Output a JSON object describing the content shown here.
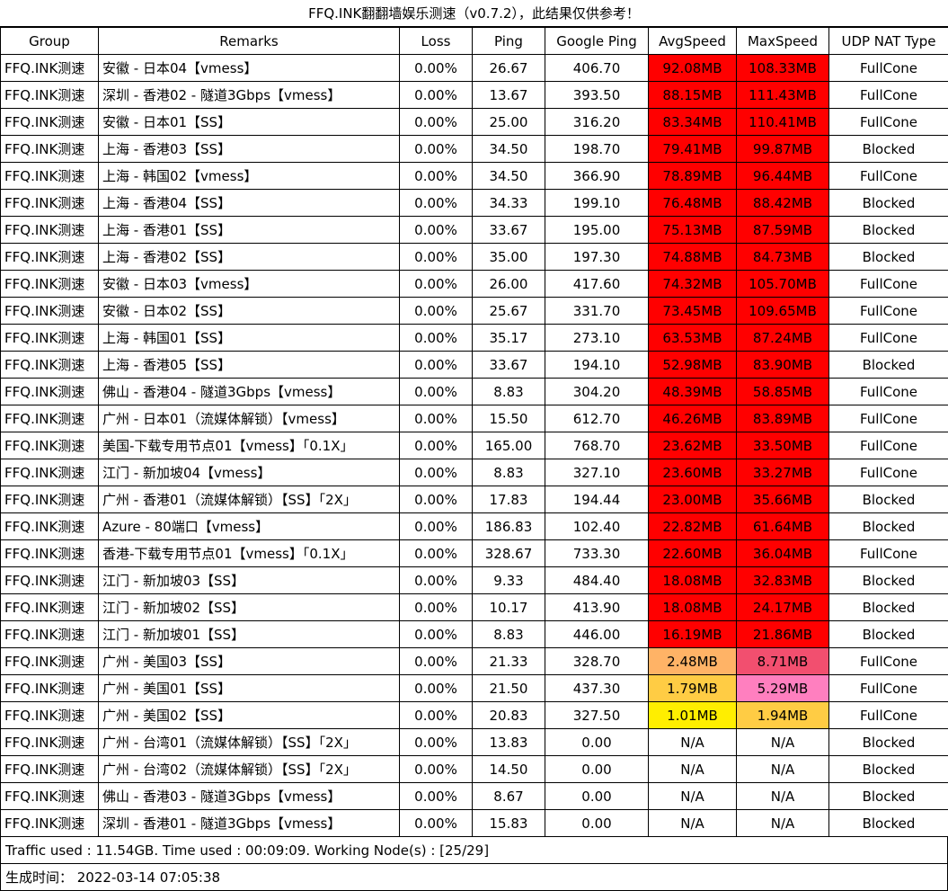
{
  "title": "FFQ.INK翻翻墙娱乐测速（v0.7.2），此结果仅供参考！",
  "headers": [
    "Group",
    "Remarks",
    "Loss",
    "Ping",
    "Google Ping",
    "AvgSpeed",
    "MaxSpeed",
    "UDP NAT Type"
  ],
  "colors": {
    "red": "#ff0000",
    "orange_light": "#ffb366",
    "pink": "#f24f6f",
    "yellow_orange": "#ffcc44",
    "pink_light": "#ff7fbf",
    "yellow": "#ffee00",
    "na": "#ffffff"
  },
  "rows": [
    {
      "group": "FFQ.INK测速",
      "remarks": "安徽 - 日本04【vmess】",
      "loss": "0.00%",
      "ping": "26.67",
      "gping": "406.70",
      "avg": "92.08MB",
      "max": "108.33MB",
      "nat": "FullCone",
      "avg_color": "#ff0000",
      "max_color": "#ff0000"
    },
    {
      "group": "FFQ.INK测速",
      "remarks": "深圳 - 香港02 - 隧道3Gbps【vmess】",
      "loss": "0.00%",
      "ping": "13.67",
      "gping": "393.50",
      "avg": "88.15MB",
      "max": "111.43MB",
      "nat": "FullCone",
      "avg_color": "#ff0000",
      "max_color": "#ff0000"
    },
    {
      "group": "FFQ.INK测速",
      "remarks": "安徽 - 日本01【SS】",
      "loss": "0.00%",
      "ping": "25.00",
      "gping": "316.20",
      "avg": "83.34MB",
      "max": "110.41MB",
      "nat": "FullCone",
      "avg_color": "#ff0000",
      "max_color": "#ff0000"
    },
    {
      "group": "FFQ.INK测速",
      "remarks": "上海 - 香港03【SS】",
      "loss": "0.00%",
      "ping": "34.50",
      "gping": "198.70",
      "avg": "79.41MB",
      "max": "99.87MB",
      "nat": "Blocked",
      "avg_color": "#ff0000",
      "max_color": "#ff0000"
    },
    {
      "group": "FFQ.INK测速",
      "remarks": "上海 - 韩国02【vmess】",
      "loss": "0.00%",
      "ping": "34.50",
      "gping": "366.90",
      "avg": "78.89MB",
      "max": "96.44MB",
      "nat": "FullCone",
      "avg_color": "#ff0000",
      "max_color": "#ff0000"
    },
    {
      "group": "FFQ.INK测速",
      "remarks": "上海 - 香港04【SS】",
      "loss": "0.00%",
      "ping": "34.33",
      "gping": "199.10",
      "avg": "76.48MB",
      "max": "88.42MB",
      "nat": "Blocked",
      "avg_color": "#ff0000",
      "max_color": "#ff0000"
    },
    {
      "group": "FFQ.INK测速",
      "remarks": "上海 - 香港01【SS】",
      "loss": "0.00%",
      "ping": "33.67",
      "gping": "195.00",
      "avg": "75.13MB",
      "max": "87.59MB",
      "nat": "Blocked",
      "avg_color": "#ff0000",
      "max_color": "#ff0000"
    },
    {
      "group": "FFQ.INK测速",
      "remarks": "上海 - 香港02【SS】",
      "loss": "0.00%",
      "ping": "35.00",
      "gping": "197.30",
      "avg": "74.88MB",
      "max": "84.73MB",
      "nat": "Blocked",
      "avg_color": "#ff0000",
      "max_color": "#ff0000"
    },
    {
      "group": "FFQ.INK测速",
      "remarks": "安徽 - 日本03【vmess】",
      "loss": "0.00%",
      "ping": "26.00",
      "gping": "417.60",
      "avg": "74.32MB",
      "max": "105.70MB",
      "nat": "FullCone",
      "avg_color": "#ff0000",
      "max_color": "#ff0000"
    },
    {
      "group": "FFQ.INK测速",
      "remarks": "安徽 - 日本02【SS】",
      "loss": "0.00%",
      "ping": "25.67",
      "gping": "331.70",
      "avg": "73.45MB",
      "max": "109.65MB",
      "nat": "FullCone",
      "avg_color": "#ff0000",
      "max_color": "#ff0000"
    },
    {
      "group": "FFQ.INK测速",
      "remarks": "上海 - 韩国01【SS】",
      "loss": "0.00%",
      "ping": "35.17",
      "gping": "273.10",
      "avg": "63.53MB",
      "max": "87.24MB",
      "nat": "FullCone",
      "avg_color": "#ff0000",
      "max_color": "#ff0000"
    },
    {
      "group": "FFQ.INK测速",
      "remarks": "上海 - 香港05【SS】",
      "loss": "0.00%",
      "ping": "33.67",
      "gping": "194.10",
      "avg": "52.98MB",
      "max": "83.90MB",
      "nat": "Blocked",
      "avg_color": "#ff0000",
      "max_color": "#ff0000"
    },
    {
      "group": "FFQ.INK测速",
      "remarks": "佛山 - 香港04 - 隧道3Gbps【vmess】",
      "loss": "0.00%",
      "ping": "8.83",
      "gping": "304.20",
      "avg": "48.39MB",
      "max": "58.85MB",
      "nat": "FullCone",
      "avg_color": "#ff0000",
      "max_color": "#ff0000"
    },
    {
      "group": "FFQ.INK测速",
      "remarks": "广州 - 日本01（流媒体解锁）【vmess】",
      "loss": "0.00%",
      "ping": "15.50",
      "gping": "612.70",
      "avg": "46.26MB",
      "max": "83.89MB",
      "nat": "FullCone",
      "avg_color": "#ff0000",
      "max_color": "#ff0000"
    },
    {
      "group": "FFQ.INK测速",
      "remarks": "美国-下载专用节点01【vmess】「0.1X」",
      "loss": "0.00%",
      "ping": "165.00",
      "gping": "768.70",
      "avg": "23.62MB",
      "max": "33.50MB",
      "nat": "FullCone",
      "avg_color": "#ff0000",
      "max_color": "#ff0000"
    },
    {
      "group": "FFQ.INK测速",
      "remarks": "江门 - 新加坡04【vmess】",
      "loss": "0.00%",
      "ping": "8.83",
      "gping": "327.10",
      "avg": "23.60MB",
      "max": "33.27MB",
      "nat": "FullCone",
      "avg_color": "#ff0000",
      "max_color": "#ff0000"
    },
    {
      "group": "FFQ.INK测速",
      "remarks": "广州 - 香港01（流媒体解锁）【SS】「2X」",
      "loss": "0.00%",
      "ping": "17.83",
      "gping": "194.44",
      "avg": "23.00MB",
      "max": "35.66MB",
      "nat": "Blocked",
      "avg_color": "#ff0000",
      "max_color": "#ff0000"
    },
    {
      "group": "FFQ.INK测速",
      "remarks": "Azure - 80端口【vmess】",
      "loss": "0.00%",
      "ping": "186.83",
      "gping": "102.40",
      "avg": "22.82MB",
      "max": "61.64MB",
      "nat": "Blocked",
      "avg_color": "#ff0000",
      "max_color": "#ff0000"
    },
    {
      "group": "FFQ.INK测速",
      "remarks": "香港-下载专用节点01【vmess】「0.1X」",
      "loss": "0.00%",
      "ping": "328.67",
      "gping": "733.30",
      "avg": "22.60MB",
      "max": "36.04MB",
      "nat": "FullCone",
      "avg_color": "#ff0000",
      "max_color": "#ff0000"
    },
    {
      "group": "FFQ.INK测速",
      "remarks": "江门 - 新加坡03【SS】",
      "loss": "0.00%",
      "ping": "9.33",
      "gping": "484.40",
      "avg": "18.08MB",
      "max": "32.83MB",
      "nat": "Blocked",
      "avg_color": "#ff0000",
      "max_color": "#ff0000"
    },
    {
      "group": "FFQ.INK测速",
      "remarks": "江门 - 新加坡02【SS】",
      "loss": "0.00%",
      "ping": "10.17",
      "gping": "413.90",
      "avg": "18.08MB",
      "max": "24.17MB",
      "nat": "Blocked",
      "avg_color": "#ff0000",
      "max_color": "#ff0000"
    },
    {
      "group": "FFQ.INK测速",
      "remarks": "江门 - 新加坡01【SS】",
      "loss": "0.00%",
      "ping": "8.83",
      "gping": "446.00",
      "avg": "16.19MB",
      "max": "21.86MB",
      "nat": "Blocked",
      "avg_color": "#ff0000",
      "max_color": "#ff0000"
    },
    {
      "group": "FFQ.INK测速",
      "remarks": "广州 - 美国03【SS】",
      "loss": "0.00%",
      "ping": "21.33",
      "gping": "328.70",
      "avg": "2.48MB",
      "max": "8.71MB",
      "nat": "FullCone",
      "avg_color": "#ffb366",
      "max_color": "#f24f6f"
    },
    {
      "group": "FFQ.INK测速",
      "remarks": "广州 - 美国01【SS】",
      "loss": "0.00%",
      "ping": "21.50",
      "gping": "437.30",
      "avg": "1.79MB",
      "max": "5.29MB",
      "nat": "FullCone",
      "avg_color": "#ffcc44",
      "max_color": "#ff7fbf"
    },
    {
      "group": "FFQ.INK测速",
      "remarks": "广州 - 美国02【SS】",
      "loss": "0.00%",
      "ping": "20.83",
      "gping": "327.50",
      "avg": "1.01MB",
      "max": "1.94MB",
      "nat": "FullCone",
      "avg_color": "#ffee00",
      "max_color": "#ffcc44"
    },
    {
      "group": "FFQ.INK测速",
      "remarks": "广州 - 台湾01（流媒体解锁）【SS】「2X」",
      "loss": "0.00%",
      "ping": "13.83",
      "gping": "0.00",
      "avg": "N/A",
      "max": "N/A",
      "nat": "Blocked",
      "avg_color": "#ffffff",
      "max_color": "#ffffff"
    },
    {
      "group": "FFQ.INK测速",
      "remarks": "广州 - 台湾02（流媒体解锁）【SS】「2X」",
      "loss": "0.00%",
      "ping": "14.50",
      "gping": "0.00",
      "avg": "N/A",
      "max": "N/A",
      "nat": "Blocked",
      "avg_color": "#ffffff",
      "max_color": "#ffffff"
    },
    {
      "group": "FFQ.INK测速",
      "remarks": "佛山 - 香港03 - 隧道3Gbps【vmess】",
      "loss": "0.00%",
      "ping": "8.67",
      "gping": "0.00",
      "avg": "N/A",
      "max": "N/A",
      "nat": "Blocked",
      "avg_color": "#ffffff",
      "max_color": "#ffffff"
    },
    {
      "group": "FFQ.INK测速",
      "remarks": "深圳 - 香港01 - 隧道3Gbps【vmess】",
      "loss": "0.00%",
      "ping": "15.83",
      "gping": "0.00",
      "avg": "N/A",
      "max": "N/A",
      "nat": "Blocked",
      "avg_color": "#ffffff",
      "max_color": "#ffffff"
    }
  ],
  "footer": {
    "traffic": "Traffic used : 11.54GB. Time used : 00:09:09. Working Node(s) : [25/29]",
    "generated": "生成时间：  2022-03-14 07:05:38"
  }
}
